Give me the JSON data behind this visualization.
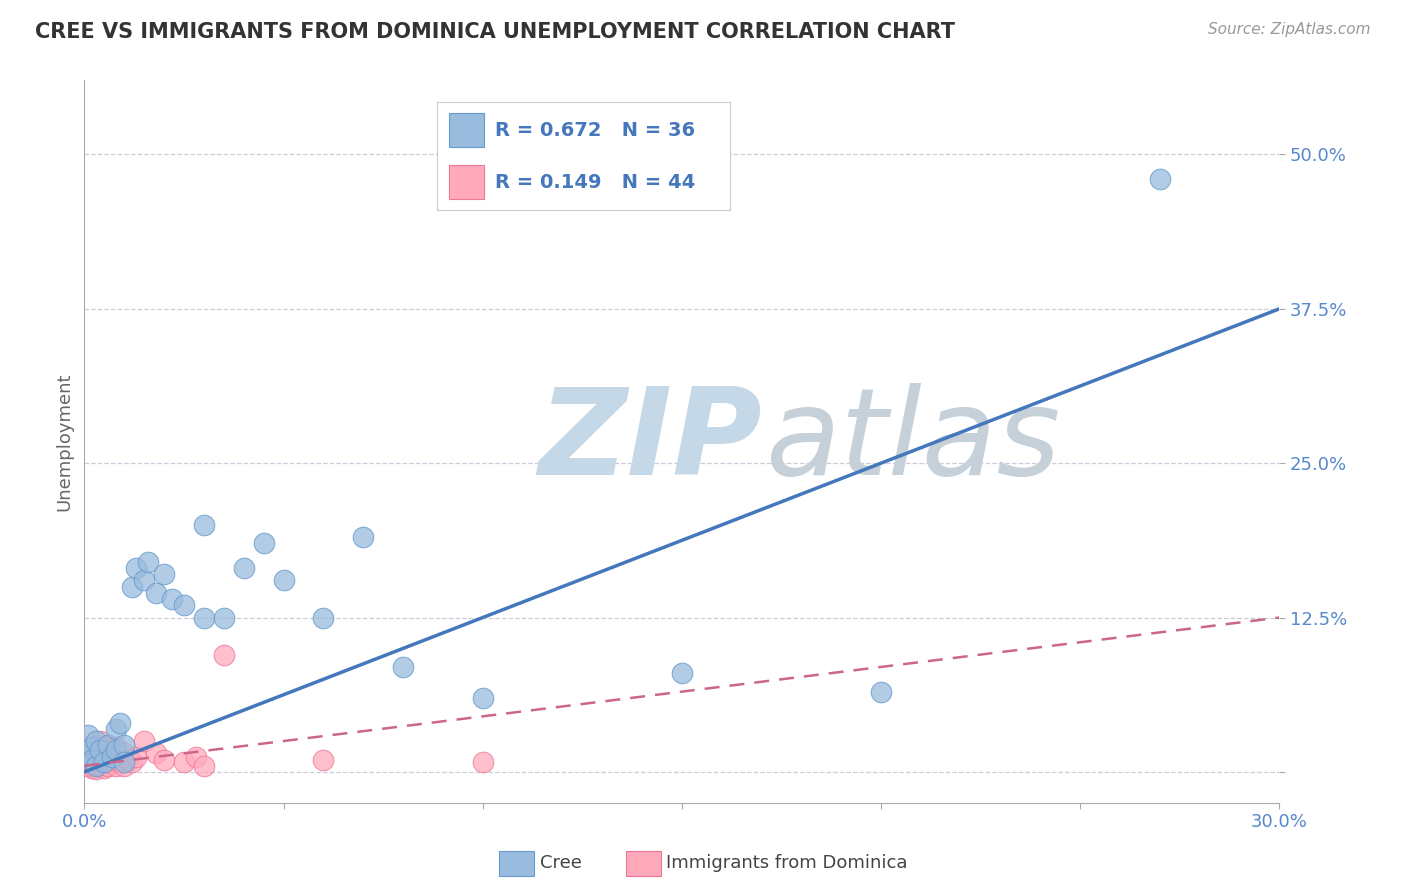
{
  "title": "CREE VS IMMIGRANTS FROM DOMINICA UNEMPLOYMENT CORRELATION CHART",
  "source": "Source: ZipAtlas.com",
  "ylabel": "Unemployment",
  "xlim": [
    0.0,
    0.3
  ],
  "ylim": [
    -0.025,
    0.56
  ],
  "xticks": [
    0.0,
    0.05,
    0.1,
    0.15,
    0.2,
    0.25,
    0.3
  ],
  "xticklabels": [
    "0.0%",
    "",
    "",
    "",
    "",
    "",
    "30.0%"
  ],
  "yticks": [
    0.0,
    0.125,
    0.25,
    0.375,
    0.5
  ],
  "yticklabels": [
    "",
    "12.5%",
    "25.0%",
    "37.5%",
    "50.0%"
  ],
  "cree_color": "#99BBDD",
  "dominica_color": "#FFAABB",
  "cree_edge_color": "#6699CC",
  "dominica_edge_color": "#EE7799",
  "cree_line_color": "#4477BB",
  "dominica_line_color": "#CC6688",
  "grid_color": "#CCCCDD",
  "background_color": "#FFFFFF",
  "watermark_zip": "ZIP",
  "watermark_atlas": "atlas",
  "watermark_color_zip": "#C5D8E8",
  "watermark_color_atlas": "#C5D0D8",
  "legend_r_cree": "R = 0.672",
  "legend_n_cree": "N = 36",
  "legend_r_dominica": "R = 0.149",
  "legend_n_dominica": "N = 44",
  "legend_text_color": "#4477BB",
  "title_color": "#333333",
  "source_color": "#999999",
  "ylabel_color": "#666666",
  "tick_color": "#5588CC",
  "cree_x": [
    0.001,
    0.001,
    0.002,
    0.002,
    0.003,
    0.003,
    0.004,
    0.005,
    0.006,
    0.007,
    0.008,
    0.008,
    0.009,
    0.01,
    0.01,
    0.012,
    0.013,
    0.015,
    0.016,
    0.018,
    0.02,
    0.022,
    0.025,
    0.03,
    0.035,
    0.04,
    0.05,
    0.06,
    0.08,
    0.1,
    0.03,
    0.045,
    0.07,
    0.15,
    0.2,
    0.27
  ],
  "cree_y": [
    0.03,
    0.015,
    0.02,
    0.01,
    0.005,
    0.025,
    0.018,
    0.008,
    0.022,
    0.012,
    0.035,
    0.018,
    0.04,
    0.022,
    0.008,
    0.15,
    0.165,
    0.155,
    0.17,
    0.145,
    0.16,
    0.14,
    0.135,
    0.125,
    0.125,
    0.165,
    0.155,
    0.125,
    0.085,
    0.06,
    0.2,
    0.185,
    0.19,
    0.08,
    0.065,
    0.48
  ],
  "dominica_x": [
    0.001,
    0.001,
    0.001,
    0.001,
    0.002,
    0.002,
    0.002,
    0.002,
    0.003,
    0.003,
    0.003,
    0.003,
    0.003,
    0.004,
    0.004,
    0.004,
    0.004,
    0.005,
    0.005,
    0.005,
    0.005,
    0.006,
    0.006,
    0.006,
    0.007,
    0.007,
    0.008,
    0.008,
    0.008,
    0.009,
    0.01,
    0.01,
    0.011,
    0.012,
    0.013,
    0.015,
    0.018,
    0.02,
    0.025,
    0.028,
    0.03,
    0.035,
    0.06,
    0.1
  ],
  "dominica_y": [
    0.005,
    0.01,
    0.015,
    0.02,
    0.003,
    0.008,
    0.012,
    0.018,
    0.002,
    0.006,
    0.01,
    0.015,
    0.022,
    0.005,
    0.01,
    0.018,
    0.025,
    0.003,
    0.008,
    0.012,
    0.018,
    0.005,
    0.01,
    0.02,
    0.008,
    0.015,
    0.005,
    0.01,
    0.02,
    0.008,
    0.005,
    0.015,
    0.01,
    0.008,
    0.012,
    0.025,
    0.015,
    0.01,
    0.008,
    0.012,
    0.005,
    0.095,
    0.01,
    0.008
  ],
  "cree_line_x0": 0.0,
  "cree_line_y0": 0.0,
  "cree_line_x1": 0.3,
  "cree_line_y1": 0.375,
  "dominica_line_x0": 0.0,
  "dominica_line_y0": 0.005,
  "dominica_line_x1": 0.3,
  "dominica_line_y1": 0.125
}
